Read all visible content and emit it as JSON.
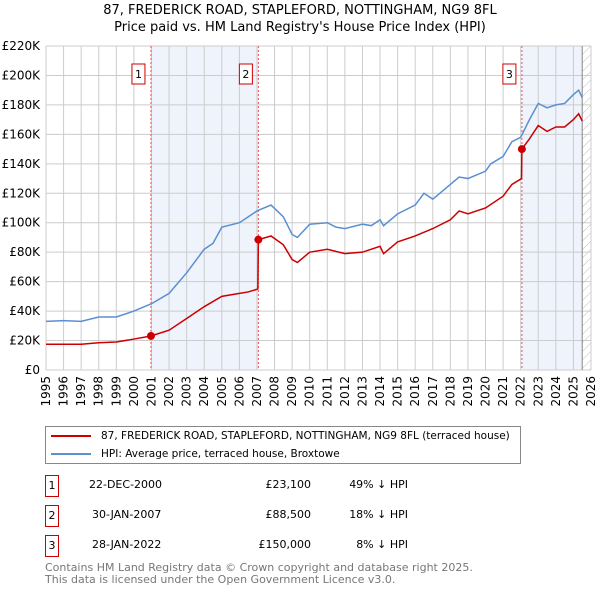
{
  "chart_data": {
    "type": "line",
    "title": "87, FREDERICK ROAD, STAPLEFORD, NOTTINGHAM, NG9 8FL",
    "subtitle": "Price paid vs. HM Land Registry's House Price Index (HPI)",
    "xlim": [
      1995,
      2026
    ],
    "ylim": [
      0,
      220000
    ],
    "x_ticks": [
      "1995",
      "1996",
      "1997",
      "1998",
      "1999",
      "2000",
      "2001",
      "2002",
      "2003",
      "2004",
      "2005",
      "2006",
      "2007",
      "2008",
      "2009",
      "2010",
      "2011",
      "2012",
      "2013",
      "2014",
      "2015",
      "2016",
      "2017",
      "2018",
      "2019",
      "2020",
      "2021",
      "2022",
      "2023",
      "2024",
      "2025",
      "2026"
    ],
    "y_ticks": [
      {
        "v": 0,
        "label": "£0"
      },
      {
        "v": 20000,
        "label": "£20K"
      },
      {
        "v": 40000,
        "label": "£40K"
      },
      {
        "v": 60000,
        "label": "£60K"
      },
      {
        "v": 80000,
        "label": "£80K"
      },
      {
        "v": 100000,
        "label": "£100K"
      },
      {
        "v": 120000,
        "label": "£120K"
      },
      {
        "v": 140000,
        "label": "£140K"
      },
      {
        "v": 160000,
        "label": "£160K"
      },
      {
        "v": 180000,
        "label": "£180K"
      },
      {
        "v": 200000,
        "label": "£200K"
      },
      {
        "v": 220000,
        "label": "£220K"
      }
    ],
    "grid": true,
    "series": [
      {
        "name": "87, FREDERICK ROAD, STAPLEFORD, NOTTINGHAM, NG9 8FL (terraced house)",
        "color": "#cc0000",
        "x": [
          1995,
          1996,
          1997,
          1998,
          1999,
          2000,
          2000.97,
          2002,
          2003,
          2004,
          2005,
          2006,
          2006.5,
          2007.05,
          2007.08,
          2007.8,
          2008.5,
          2009,
          2009.3,
          2010,
          2011,
          2012,
          2013,
          2014,
          2014.2,
          2015,
          2016,
          2017,
          2018,
          2018.5,
          2019,
          2020,
          2021,
          2021.5,
          2022.05,
          2022.07,
          2022.5,
          2023,
          2023.5,
          2024,
          2024.5,
          2025,
          2025.3,
          2025.5
        ],
        "y": [
          17500,
          17500,
          17500,
          18500,
          19000,
          21000,
          23100,
          27000,
          35000,
          43000,
          50000,
          52000,
          53000,
          55000,
          88500,
          91000,
          85000,
          75000,
          73000,
          80000,
          82000,
          79000,
          80000,
          84000,
          79000,
          87000,
          91000,
          96000,
          102000,
          108000,
          106000,
          110000,
          118000,
          126000,
          130000,
          150000,
          157000,
          166000,
          162000,
          165000,
          165000,
          170000,
          174000,
          169000
        ]
      },
      {
        "name": "HPI: Average price, terraced house, Broxtowe",
        "color": "#5b8fd0",
        "x": [
          1995,
          1996,
          1997,
          1998,
          1999,
          2000,
          2001,
          2002,
          2003,
          2004,
          2004.5,
          2005,
          2006,
          2006.5,
          2007,
          2007.8,
          2008.5,
          2009,
          2009.3,
          2010,
          2011,
          2011.5,
          2012,
          2013,
          2013.5,
          2014,
          2014.2,
          2015,
          2016,
          2016.5,
          2017,
          2018,
          2018.5,
          2019,
          2020,
          2020.3,
          2021,
          2021.5,
          2022,
          2022.5,
          2023,
          2023.5,
          2024,
          2024.5,
          2025,
          2025.3,
          2025.5
        ],
        "y": [
          33000,
          33500,
          33000,
          36000,
          36000,
          40000,
          45000,
          52000,
          66000,
          82000,
          86000,
          97000,
          100000,
          104000,
          108000,
          112000,
          104000,
          92000,
          90000,
          99000,
          100000,
          97000,
          96000,
          99000,
          98000,
          102000,
          98000,
          106000,
          112000,
          120000,
          116000,
          126000,
          131000,
          130000,
          135000,
          140000,
          145000,
          155000,
          158000,
          170000,
          181000,
          178000,
          180000,
          181000,
          187000,
          190000,
          185000
        ]
      }
    ],
    "sales": [
      {
        "n": "1",
        "x": 2000.97,
        "y": 23100,
        "date": "22-DEC-2000",
        "price": "£23,100",
        "hpi": "49% ↓ HPI"
      },
      {
        "n": "2",
        "x": 2007.08,
        "y": 88500,
        "date": "30-JAN-2007",
        "price": "£88,500",
        "hpi": "18% ↓ HPI"
      },
      {
        "n": "3",
        "x": 2022.07,
        "y": 150000,
        "date": "28-JAN-2022",
        "price": "£150,000",
        "hpi": "8% ↓ HPI"
      }
    ],
    "shaded": [
      [
        2000.97,
        2007.08
      ],
      [
        2022.07,
        2025.5
      ]
    ],
    "data_end": 2025.5
  },
  "footer": {
    "line1": "Contains HM Land Registry data © Crown copyright and database right 2025.",
    "line2": "This data is licensed under the Open Government Licence v3.0."
  }
}
